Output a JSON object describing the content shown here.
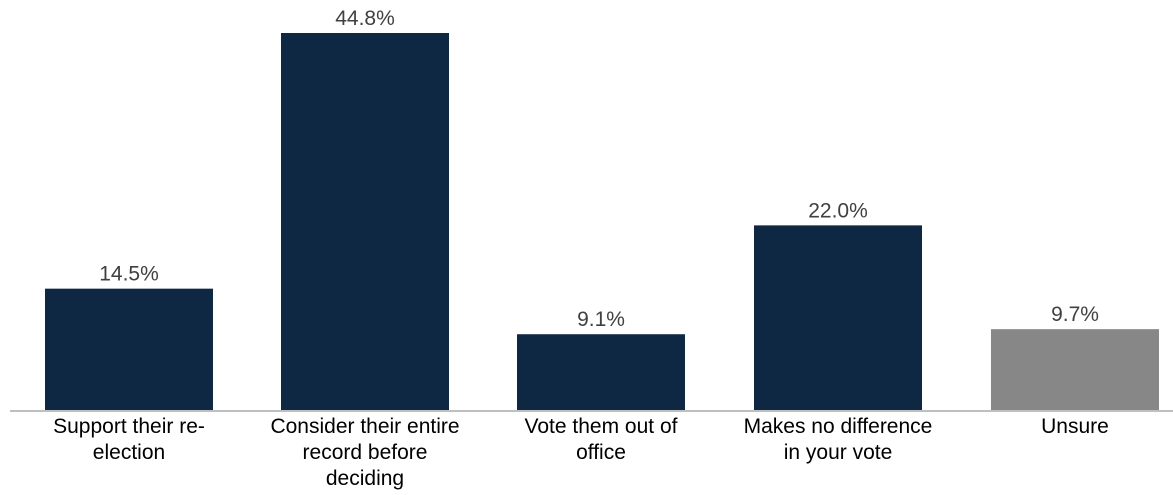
{
  "chart_data": {
    "type": "bar",
    "title": "",
    "xlabel": "",
    "ylabel": "",
    "ylim": [
      0,
      44.8
    ],
    "grid": false,
    "legend": "none",
    "categories": [
      "Support their re-\nelection",
      "Consider their entire\nrecord before\ndeciding",
      "Vote them out of\noffice",
      "Makes no difference\nin your vote",
      "Unsure"
    ],
    "values": [
      14.5,
      44.8,
      9.1,
      22.0,
      9.7
    ],
    "data_labels": [
      "14.5%",
      "44.8%",
      "9.1%",
      "22.0%",
      "9.7%"
    ],
    "bar_colors": [
      "#0e2843",
      "#0e2843",
      "#0e2843",
      "#0e2843",
      "#878787"
    ],
    "axis_line_color": "#bfbfbf"
  }
}
